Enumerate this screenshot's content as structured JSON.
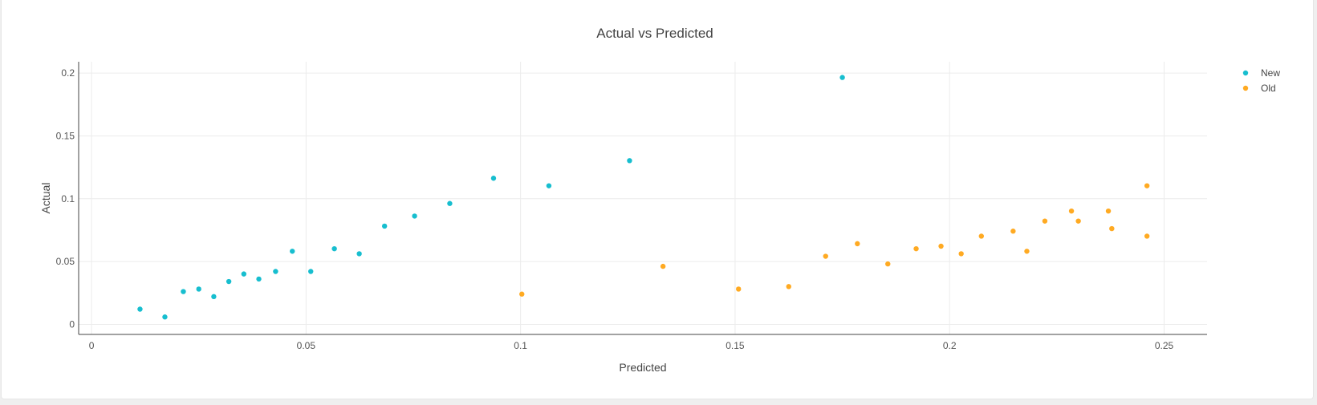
{
  "chart_data": {
    "type": "scatter",
    "title": "Actual vs Predicted",
    "xlabel": "Predicted",
    "ylabel": "Actual",
    "xlim": [
      -0.003,
      0.26
    ],
    "ylim": [
      -0.008,
      0.209
    ],
    "xticks": [
      0,
      0.05,
      0.1,
      0.15,
      0.2,
      0.25
    ],
    "xtick_labels": [
      "0",
      "0.05",
      "0.1",
      "0.15",
      "0.2",
      "0.25"
    ],
    "yticks": [
      0,
      0.05,
      0.1,
      0.15,
      0.2
    ],
    "ytick_labels": [
      "0",
      "0.05",
      "0.1",
      "0.15",
      "0.2"
    ],
    "grid": true,
    "legend_position": "top-right",
    "series": [
      {
        "name": "New",
        "color": "#17becf",
        "points": [
          [
            0.0113,
            0.0121
          ],
          [
            0.0171,
            0.0059
          ],
          [
            0.0214,
            0.0261
          ],
          [
            0.025,
            0.0281
          ],
          [
            0.0285,
            0.0221
          ],
          [
            0.032,
            0.0341
          ],
          [
            0.0355,
            0.0401
          ],
          [
            0.039,
            0.0361
          ],
          [
            0.0429,
            0.0421
          ],
          [
            0.0468,
            0.0582
          ],
          [
            0.0511,
            0.0421
          ],
          [
            0.0566,
            0.0602
          ],
          [
            0.0624,
            0.0562
          ],
          [
            0.0683,
            0.0782
          ],
          [
            0.0753,
            0.0862
          ],
          [
            0.0835,
            0.0962
          ],
          [
            0.0937,
            0.1163
          ],
          [
            0.1066,
            0.1103
          ],
          [
            0.1254,
            0.1303
          ],
          [
            0.175,
            0.1965
          ]
        ]
      },
      {
        "name": "Old",
        "color": "#ffaa22",
        "points": [
          [
            0.1003,
            0.0241
          ],
          [
            0.1332,
            0.0462
          ],
          [
            0.1508,
            0.0281
          ],
          [
            0.1625,
            0.0301
          ],
          [
            0.1711,
            0.0542
          ],
          [
            0.1785,
            0.0642
          ],
          [
            0.1856,
            0.0481
          ],
          [
            0.1922,
            0.0602
          ],
          [
            0.198,
            0.0622
          ],
          [
            0.2027,
            0.0562
          ],
          [
            0.2074,
            0.0702
          ],
          [
            0.2148,
            0.0742
          ],
          [
            0.218,
            0.0582
          ],
          [
            0.2222,
            0.0822
          ],
          [
            0.2284,
            0.0902
          ],
          [
            0.23,
            0.0822
          ],
          [
            0.237,
            0.0902
          ],
          [
            0.2378,
            0.0762
          ],
          [
            0.246,
            0.1103
          ],
          [
            0.246,
            0.0702
          ]
        ]
      }
    ]
  }
}
